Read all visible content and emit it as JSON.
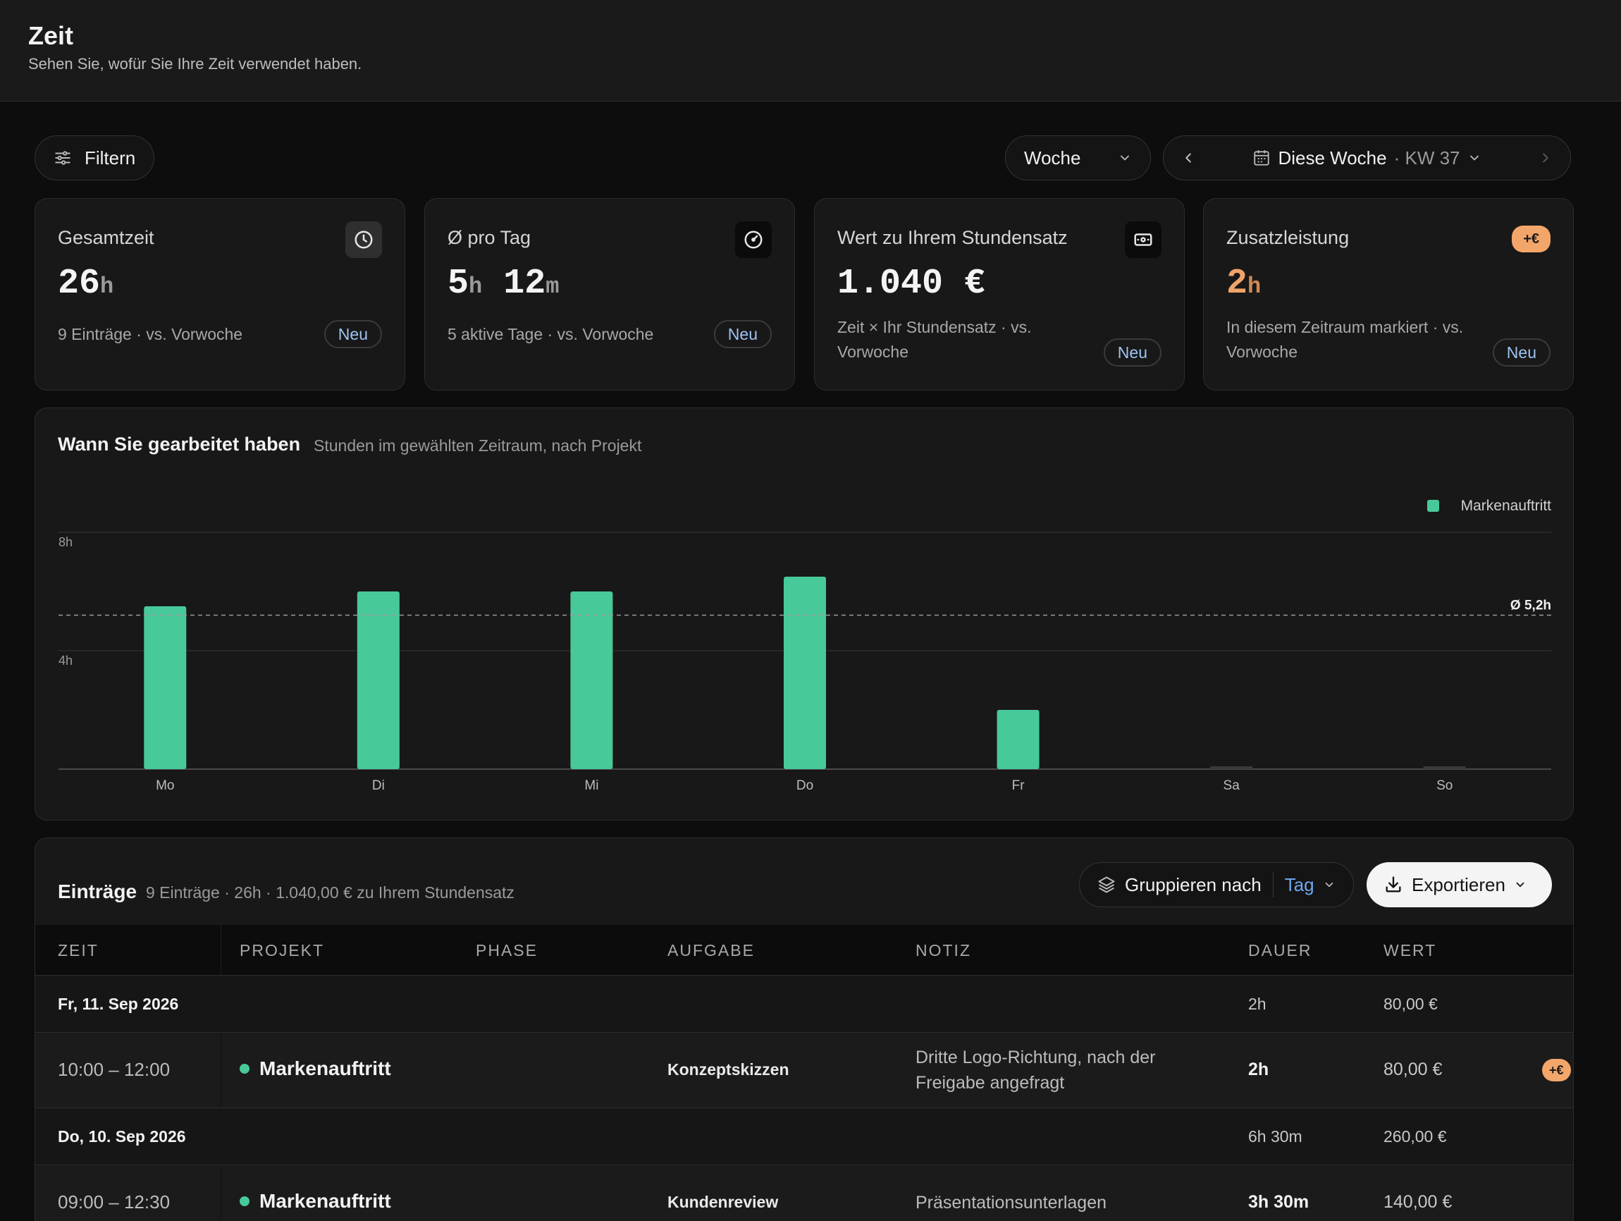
{
  "header": {
    "title": "Zeit",
    "subtitle": "Sehen Sie, wofür Sie Ihre Zeit verwendet haben."
  },
  "toolbar": {
    "filter_label": "Filtern",
    "period_value": "Woche",
    "date_label": "Diese Woche",
    "date_week": "· KW 37"
  },
  "stats": [
    {
      "title": "Gesamtzeit",
      "value": "26",
      "unit": "h",
      "sub": "9 Einträge · vs. Vorwoche",
      "badge": "Neu",
      "icon": "clock-icon"
    },
    {
      "title": "Ø pro Tag",
      "value_h": "5",
      "unit_h": "h",
      "value_m": "12",
      "unit_m": "m",
      "sub": "5 aktive Tage · vs. Vorwoche",
      "badge": "Neu",
      "icon": "gauge-icon"
    },
    {
      "title": "Wert zu Ihrem Stundensatz",
      "value": "1.040 €",
      "sub_line1": "Zeit × Ihr Stundensatz · vs.",
      "sub_line2": "Vorwoche",
      "badge": "Neu",
      "icon": "banknote-icon"
    },
    {
      "title": "Zusatzleistung",
      "value": "2",
      "unit": "h",
      "sub_line1": "In diesem Zeitraum markiert · vs.",
      "sub_line2": "Vorwoche",
      "badge": "Neu",
      "tag": "+€"
    }
  ],
  "chart": {
    "title": "Wann Sie gearbeitet haben",
    "subtitle": "Stunden im gewählten Zeitraum, nach Projekt"
  },
  "chart_data": {
    "type": "bar",
    "categories": [
      "Mo",
      "Di",
      "Mi",
      "Do",
      "Fr",
      "Sa",
      "So"
    ],
    "series": [
      {
        "name": "Markenauftritt",
        "values": [
          5.5,
          6.0,
          6.0,
          6.5,
          2.0,
          0,
          0
        ],
        "color": "#48c99a"
      }
    ],
    "ylim": [
      0,
      8
    ],
    "yticks": [
      "4h",
      "8h"
    ],
    "ytick_values": [
      4,
      8
    ],
    "average": {
      "value": 5.2,
      "label": "Ø 5,2h"
    },
    "legend": "top-right",
    "grid": true
  },
  "entries": {
    "title": "Einträge",
    "subtitle": "9 Einträge · 26h · 1.040,00 € zu Ihrem Stundensatz",
    "group_label": "Gruppieren nach",
    "group_value": "Tag",
    "export_label": "Exportieren",
    "columns": [
      "ZEIT",
      "PROJEKT",
      "PHASE",
      "AUFGABE",
      "NOTIZ",
      "DAUER",
      "WERT"
    ],
    "groups": [
      {
        "date": "Fr, 11. Sep 2026",
        "duration": "2h",
        "value": "80,00 €",
        "rows": [
          {
            "time": "10:00 – 12:00",
            "project": "Markenauftritt",
            "task": "Konzeptskizzen",
            "note_line1": "Dritte Logo-Richtung, nach der",
            "note_line2": "Freigabe angefragt",
            "duration": "2h",
            "value": "80,00 €",
            "tag": "+€"
          }
        ]
      },
      {
        "date": "Do, 10. Sep 2026",
        "duration": "6h 30m",
        "value": "260,00 €",
        "rows": [
          {
            "time": "09:00 – 12:30",
            "project": "Markenauftritt",
            "task": "Kundenreview",
            "note_line1": "Präsentationsunterlagen",
            "duration": "3h 30m",
            "value": "140,00 €"
          }
        ]
      }
    ]
  }
}
